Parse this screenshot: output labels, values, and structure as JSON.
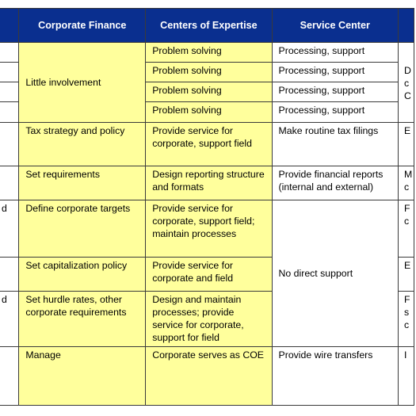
{
  "headers": {
    "corporate_finance": "Corporate Finance",
    "centers_of_expertise": "Centers of Expertise",
    "service_center": "Service Center"
  },
  "rows": {
    "r1": {
      "centers": "Problem solving",
      "service": "Processing, support"
    },
    "r2": {
      "centers": "Problem solving",
      "service": "Processing, support",
      "right": "D"
    },
    "r3": {
      "centers": "Problem solving",
      "service": "Processing, support",
      "right": "c"
    },
    "r4": {
      "centers": "Problem solving",
      "service": "Processing, support",
      "right": "C"
    },
    "little": {
      "corporate": "Little involvement"
    },
    "tax": {
      "corporate": "Tax strategy and policy",
      "centers": "Provide service for corporate, support field",
      "service": "Make routine tax filings",
      "right": "E"
    },
    "reqs": {
      "corporate": "Set requirements",
      "centers": "Design reporting structure and formats",
      "service": "Provide financial reports (internal and external)",
      "right": "M c"
    },
    "targets": {
      "left": "d",
      "corporate": "Define corporate targets",
      "centers": "Provide service for corporate, support field; maintain processes",
      "right": "F c"
    },
    "capitalization": {
      "corporate": "Set capitalization policy",
      "centers": "Provide service for corporate and field",
      "right": "E"
    },
    "no_direct": {
      "service": "No direct support"
    },
    "hurdle": {
      "left": "d",
      "corporate": "Set hurdle rates, other corporate requirements",
      "centers": "Design and maintain processes; provide service for corporate, support for field",
      "right": "F s c"
    },
    "manage": {
      "corporate": "Manage",
      "centers": "Corporate serves as COE",
      "service": "Provide wire transfers",
      "right": "I"
    }
  },
  "colors": {
    "header_blue": "#0a2f8f",
    "cell_yellow": "#ffff9c",
    "border": "#3a3a3a"
  }
}
